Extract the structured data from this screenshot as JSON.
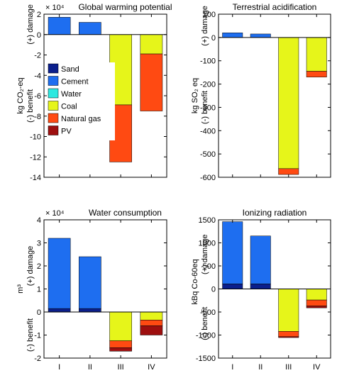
{
  "chart_data": [
    {
      "type": "bar",
      "stacked": true,
      "title": "Global warming potential",
      "ylabel": "kg CO₂-eq",
      "pos_label": "(+) damage",
      "neg_label": "(-) benefit",
      "multiplier": "× 10⁴",
      "ylim": [
        -14,
        2
      ],
      "yticks": [
        -14,
        -12,
        -10,
        -8,
        -6,
        -4,
        -2,
        0,
        2
      ],
      "categories": [
        "I",
        "II",
        "III",
        "IV"
      ],
      "show_xticklabels": false,
      "series": [
        {
          "name": "Sand",
          "values": [
            0,
            0,
            0,
            0
          ]
        },
        {
          "name": "Cement",
          "values": [
            1.7,
            1.2,
            0,
            0
          ]
        },
        {
          "name": "Water",
          "values": [
            0,
            0,
            0,
            0
          ]
        },
        {
          "name": "Coal",
          "values": [
            0,
            0,
            -6.9,
            -1.9
          ]
        },
        {
          "name": "Natural gas",
          "values": [
            0,
            0,
            -5.6,
            -5.6
          ]
        },
        {
          "name": "PV",
          "values": [
            0,
            0,
            0,
            0
          ]
        }
      ],
      "legend": "left"
    },
    {
      "type": "bar",
      "stacked": true,
      "title": "Terrestrial acidification",
      "ylabel": "kg SO₂ eq",
      "pos_label": "(+) damage",
      "neg_label": "(-) benefit",
      "ylim": [
        -600,
        100
      ],
      "yticks": [
        -600,
        -500,
        -400,
        -300,
        -200,
        -100,
        0,
        100
      ],
      "categories": [
        "I",
        "II",
        "III",
        "IV"
      ],
      "show_xticklabels": false,
      "series": [
        {
          "name": "Sand",
          "values": [
            0,
            0,
            0,
            0
          ]
        },
        {
          "name": "Cement",
          "values": [
            20,
            15,
            0,
            0
          ]
        },
        {
          "name": "Water",
          "values": [
            0,
            0,
            0,
            0
          ]
        },
        {
          "name": "Coal",
          "values": [
            0,
            0,
            -563,
            -145
          ]
        },
        {
          "name": "Natural gas",
          "values": [
            0,
            0,
            -25,
            -25
          ]
        },
        {
          "name": "PV",
          "values": [
            0,
            0,
            0,
            0
          ]
        }
      ]
    },
    {
      "type": "bar",
      "stacked": true,
      "title": "Water consumption",
      "ylabel": "m³",
      "pos_label": "(+) damage",
      "neg_label": "(-) benefit",
      "multiplier": "× 10⁴",
      "ylim": [
        -2,
        4
      ],
      "yticks": [
        -2,
        -1,
        0,
        1,
        2,
        3,
        4
      ],
      "categories": [
        "I",
        "II",
        "III",
        "IV"
      ],
      "show_xticklabels": true,
      "series": [
        {
          "name": "Sand",
          "values": [
            0.15,
            0.15,
            0,
            0
          ]
        },
        {
          "name": "Cement",
          "values": [
            3.05,
            2.25,
            0,
            0
          ]
        },
        {
          "name": "Water",
          "values": [
            0,
            0,
            0,
            0
          ]
        },
        {
          "name": "Coal",
          "values": [
            0,
            0,
            -1.25,
            -0.35
          ]
        },
        {
          "name": "Natural gas",
          "values": [
            0,
            0,
            -0.3,
            -0.25
          ]
        },
        {
          "name": "PV",
          "values": [
            0,
            0,
            -0.15,
            -0.4
          ]
        }
      ]
    },
    {
      "type": "bar",
      "stacked": true,
      "title": "Ionizing radiation",
      "ylabel": "kBq Co-60eq",
      "pos_label": "(+) damage",
      "neg_label": "(-) benefit",
      "ylim": [
        -1500,
        1500
      ],
      "yticks": [
        -1500,
        -1000,
        -500,
        0,
        500,
        1000,
        1500
      ],
      "categories": [
        "I",
        "II",
        "III",
        "IV"
      ],
      "show_xticklabels": true,
      "series": [
        {
          "name": "Sand",
          "values": [
            110,
            110,
            0,
            0
          ]
        },
        {
          "name": "Cement",
          "values": [
            1350,
            1040,
            0,
            0
          ]
        },
        {
          "name": "Water",
          "values": [
            0,
            0,
            0,
            0
          ]
        },
        {
          "name": "Coal",
          "values": [
            0,
            0,
            -920,
            -240
          ]
        },
        {
          "name": "Natural gas",
          "values": [
            0,
            0,
            -115,
            -130
          ]
        },
        {
          "name": "PV",
          "values": [
            0,
            0,
            -20,
            -40
          ]
        }
      ]
    }
  ],
  "colors": {
    "Sand": "#0b1f8c",
    "Cement": "#1e6ef0",
    "Water": "#2ee8e0",
    "Coal": "#e6f51a",
    "Natural gas": "#ff4a12",
    "PV": "#9e0f0f"
  }
}
